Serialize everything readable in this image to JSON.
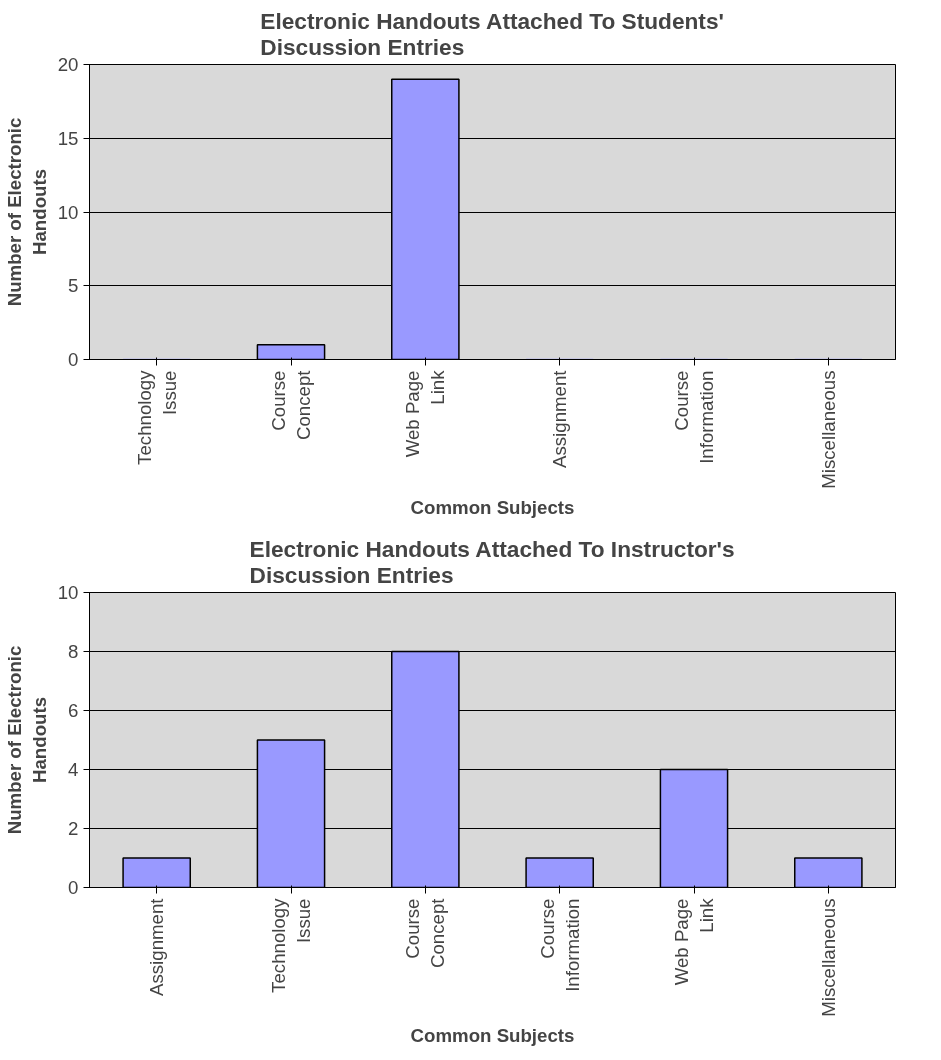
{
  "chart_data": [
    {
      "type": "bar",
      "title": "Electronic Handouts Attached To Students'\nDiscussion Entries",
      "xlabel": "Common Subjects",
      "ylabel": "Number of Electronic\nHandouts",
      "categories": [
        "Technology\nIssue",
        "Course\nConcept",
        "Web Page\nLink",
        "Assignment",
        "Course\nInformation",
        "Miscellaneous"
      ],
      "values": [
        0,
        1,
        19,
        0,
        0,
        0
      ],
      "color": "#9999ff",
      "ylim": [
        0,
        20
      ],
      "yticks": [
        0,
        5,
        10,
        15,
        20
      ],
      "grid": "y"
    },
    {
      "type": "bar",
      "title": "Electronic Handouts Attached To Instructor's\nDiscussion Entries",
      "xlabel": "Common Subjects",
      "ylabel": "Number of Electronic\nHandouts",
      "categories": [
        "Assignment",
        "Technology\nIssue",
        "Course\nConcept",
        "Course\nInformation",
        "Web Page\nLink",
        "Miscellaneous"
      ],
      "values": [
        1,
        5,
        8,
        1,
        4,
        1
      ],
      "color": "#9999ff",
      "ylim": [
        0,
        10
      ],
      "yticks": [
        0,
        2,
        4,
        6,
        8,
        10
      ],
      "grid": "y"
    }
  ]
}
